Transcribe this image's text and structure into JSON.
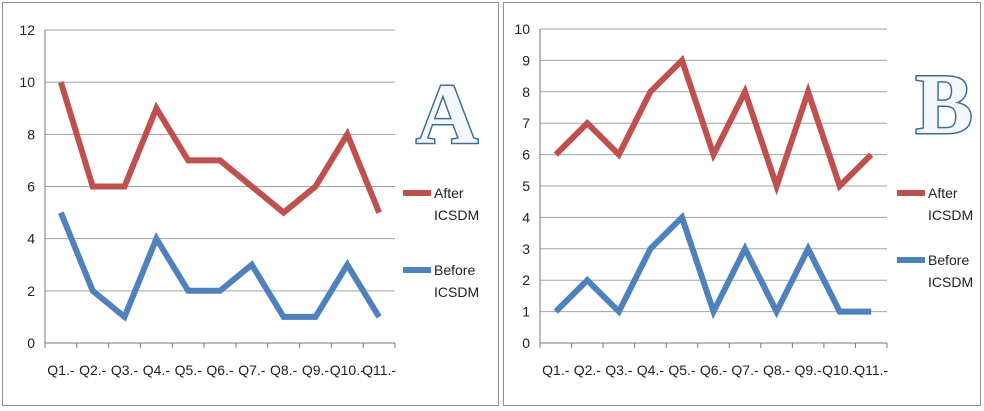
{
  "chart_data": [
    {
      "type": "line",
      "panel_label": "A",
      "categories": [
        "Q1.-",
        "Q2.-",
        "Q3.-",
        "Q4.-",
        "Q5.-",
        "Q6.-",
        "Q7.-",
        "Q8.-",
        "Q9.-",
        "Q10.-",
        "Q11.-"
      ],
      "ylim": [
        0,
        12
      ],
      "yticks": [
        0,
        2,
        4,
        6,
        8,
        10,
        12
      ],
      "grid": true,
      "legend": "right",
      "series": [
        {
          "name": "After ICSDM",
          "name_lines": [
            "After",
            "ICSDM"
          ],
          "color": "#c0504d",
          "values": [
            10,
            6,
            6,
            9,
            7,
            7,
            6,
            5,
            6,
            8,
            5
          ]
        },
        {
          "name": "Before ICSDM",
          "name_lines": [
            "Before",
            "ICSDM"
          ],
          "color": "#4f81bd",
          "values": [
            5,
            2,
            1,
            4,
            2,
            2,
            3,
            1,
            1,
            3,
            1
          ]
        }
      ]
    },
    {
      "type": "line",
      "panel_label": "B",
      "categories": [
        "Q1.-",
        "Q2.-",
        "Q3.-",
        "Q4.-",
        "Q5.-",
        "Q6.-",
        "Q7.-",
        "Q8.-",
        "Q9.-",
        "Q10.-",
        "Q11.-"
      ],
      "ylim": [
        0,
        10
      ],
      "yticks": [
        0,
        1,
        2,
        3,
        4,
        5,
        6,
        7,
        8,
        9,
        10
      ],
      "grid": true,
      "legend": "right",
      "series": [
        {
          "name": "After ICSDM",
          "name_lines": [
            "After",
            "ICSDM"
          ],
          "color": "#c0504d",
          "values": [
            6,
            7,
            6,
            8,
            9,
            6,
            8,
            5,
            8,
            5,
            6
          ]
        },
        {
          "name": "Before ICSDM",
          "name_lines": [
            "Before",
            "ICSDM"
          ],
          "color": "#4f81bd",
          "values": [
            1,
            2,
            1,
            3,
            4,
            1,
            3,
            1,
            3,
            1,
            1
          ]
        }
      ]
    }
  ]
}
